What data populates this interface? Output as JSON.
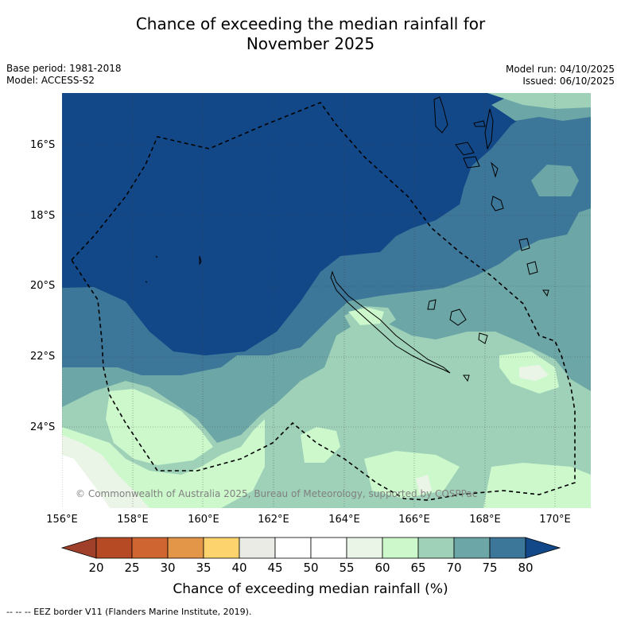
{
  "title_line1": "Chance of exceeding the median rainfall for",
  "title_line2": "November 2025",
  "base_period": "Base period: 1981-2018",
  "model": "Model: ACCESS-S2",
  "model_run": "Model run: 04/10/2025",
  "issued": "Issued: 06/10/2025",
  "lat_labels": [
    "16°S",
    "18°S",
    "20°S",
    "22°S",
    "24°S"
  ],
  "lon_labels": [
    "156°E",
    "158°E",
    "160°E",
    "162°E",
    "164°E",
    "166°E",
    "168°E",
    "170°E"
  ],
  "copyright": "© Commonwealth of Australia 2025, Bureau of Meteorology, supported by COSPPac",
  "colorbar": {
    "ticks": [
      "20",
      "25",
      "30",
      "35",
      "40",
      "45",
      "50",
      "55",
      "60",
      "65",
      "70",
      "75",
      "80"
    ],
    "title": "Chance of exceeding median rainfall (%)",
    "colors": [
      "#a0402a",
      "#b54a24",
      "#cf6632",
      "#e39548",
      "#fdd36d",
      "#ebebe6",
      "#ffffff",
      "#ffffff",
      "#eaf5e8",
      "#ccf8cc",
      "#9ed1b8",
      "#6ca6a6",
      "#3c7699",
      "#124888"
    ]
  },
  "legend_note": "-- -- -- EEZ border V11 (Flanders Marine Institute, 2019)."
}
